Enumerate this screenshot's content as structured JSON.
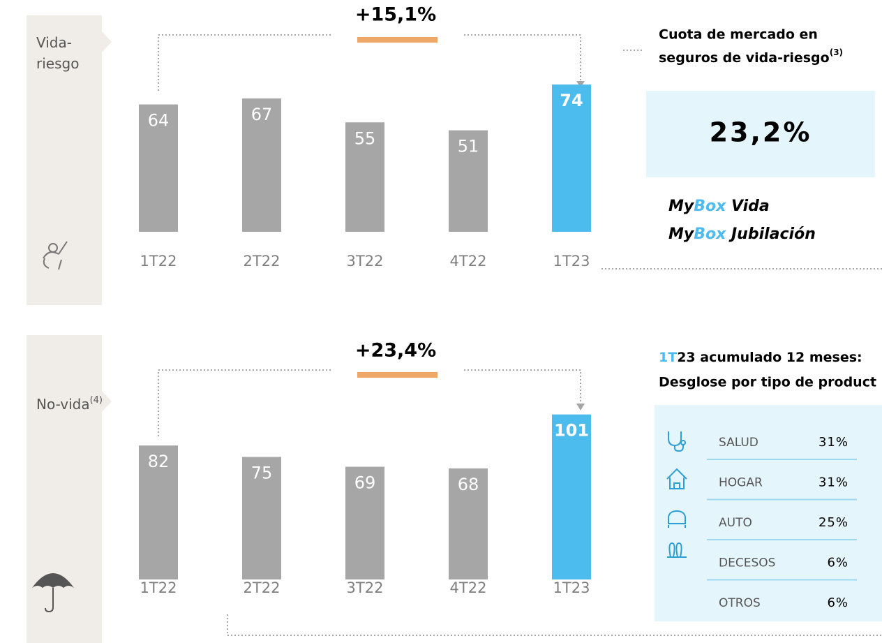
{
  "chart_data": [
    {
      "type": "bar",
      "label_lines": [
        "Vida-",
        "riesgo"
      ],
      "growth": "+15,1%",
      "categories": [
        "1T22",
        "2T22",
        "3T22",
        "4T22",
        "1T23"
      ],
      "values": [
        64,
        67,
        55,
        51,
        74
      ],
      "colors": [
        "#a6a6a6",
        "#a6a6a6",
        "#a6a6a6",
        "#a6a6a6",
        "#4cbcee"
      ]
    },
    {
      "type": "bar",
      "label_lines": [
        "No-vida"
      ],
      "label_sup": "(4)",
      "growth": "+23,4%",
      "categories": [
        "1T22",
        "2T22",
        "3T22",
        "4T22",
        "1T23"
      ],
      "values": [
        82,
        75,
        69,
        68,
        101
      ],
      "colors": [
        "#a6a6a6",
        "#a6a6a6",
        "#a6a6a6",
        "#a6a6a6",
        "#4cbcee"
      ]
    }
  ],
  "market_share": {
    "title_lines": [
      "Cuota de mercado en",
      "seguros de vida-riesgo"
    ],
    "title_sup": "(3)",
    "value": "23,2%"
  },
  "products": [
    {
      "prefix": "My",
      "brand": "Box",
      "suffix": " Vida"
    },
    {
      "prefix": "My",
      "brand": "Box",
      "suffix": " Jubilación"
    }
  ],
  "breakdown": {
    "title_prefix": "1T",
    "title_rest": "23 acumulado 12 meses:",
    "subtitle": "Desglose por tipo de product",
    "rows": [
      {
        "label": "SALUD",
        "share": "31%"
      },
      {
        "label": "HOGAR",
        "share": "31%"
      },
      {
        "label": "AUTO",
        "share": "25%"
      },
      {
        "label": "DECESOS",
        "share": "6%"
      },
      {
        "label": "OTROS",
        "share": "6%"
      }
    ]
  }
}
